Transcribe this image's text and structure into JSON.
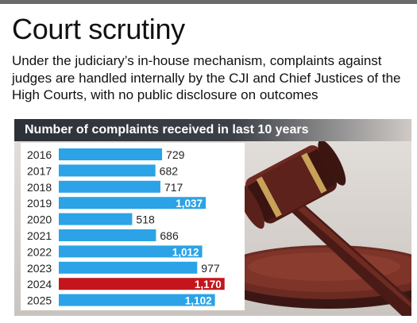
{
  "header": {
    "title": "Court scrutiny",
    "subtitle": "Under the judiciary’s in-house mechanism, complaints against judges are handled internally by the CJI and Chief Justices of the High Courts, with no public disclosure on outcomes"
  },
  "chart_data": {
    "type": "bar",
    "orientation": "horizontal",
    "title": "Number of complaints received in last 10 years",
    "categories": [
      "2016",
      "2017",
      "2018",
      "2019",
      "2020",
      "2021",
      "2022",
      "2023",
      "2024",
      "2025"
    ],
    "values": [
      729,
      682,
      717,
      1037,
      518,
      686,
      1012,
      977,
      1170,
      1102
    ],
    "value_labels": [
      "729",
      "682",
      "717",
      "1,037",
      "518",
      "686",
      "1,012",
      "977",
      "1,170",
      "1,102"
    ],
    "highlight": "2024",
    "colors": {
      "bar": "#2ba3e6",
      "highlight": "#c3161c"
    }
  }
}
